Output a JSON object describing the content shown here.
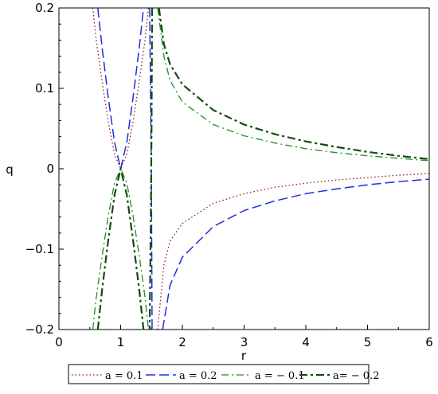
{
  "chart_data": {
    "type": "line",
    "xlabel": "r",
    "ylabel": "q",
    "xlim": [
      0,
      6
    ],
    "ylim": [
      -0.2,
      0.2
    ],
    "x_ticks": [
      "0",
      "1",
      "2",
      "3",
      "4",
      "5",
      "6"
    ],
    "y_ticks": [
      "0.2",
      "0.1",
      "0",
      "−0.1",
      "−0.2"
    ],
    "grid": false,
    "legend_position": "bottom",
    "series": [
      {
        "name": "a = 0.1",
        "color": "#8b1a1a",
        "style": "dotted",
        "segments": [
          [
            [
              0.55,
              0.2
            ],
            [
              0.6,
              0.163
            ],
            [
              0.7,
              0.108
            ],
            [
              0.8,
              0.058
            ],
            [
              0.9,
              0.018
            ],
            [
              1.0,
              0.0
            ],
            [
              1.1,
              0.018
            ],
            [
              1.2,
              0.058
            ],
            [
              1.3,
              0.108
            ],
            [
              1.4,
              0.163
            ],
            [
              1.45,
              0.2
            ]
          ],
          [
            [
              1.6,
              -0.2
            ],
            [
              1.7,
              -0.12
            ],
            [
              1.8,
              -0.09
            ],
            [
              2.0,
              -0.068
            ],
            [
              2.5,
              -0.043
            ],
            [
              3.0,
              -0.031
            ],
            [
              3.5,
              -0.023
            ],
            [
              4.0,
              -0.018
            ],
            [
              4.5,
              -0.014
            ],
            [
              5.0,
              -0.011
            ],
            [
              5.5,
              -0.008
            ],
            [
              6.0,
              -0.006
            ]
          ]
        ]
      },
      {
        "name": "a = 0.2",
        "color": "#1f2fd8",
        "style": "dashed",
        "segments": [
          [
            [
              0.63,
              0.2
            ],
            [
              0.7,
              0.15
            ],
            [
              0.8,
              0.088
            ],
            [
              0.9,
              0.033
            ],
            [
              1.0,
              0.0
            ],
            [
              1.1,
              0.033
            ],
            [
              1.2,
              0.088
            ],
            [
              1.3,
              0.15
            ],
            [
              1.37,
              0.2
            ]
          ],
          [
            [
              1.47,
              0.2
            ],
            [
              1.49,
              0.05
            ],
            [
              1.5,
              -0.05
            ],
            [
              1.51,
              -0.2
            ]
          ],
          [
            [
              1.68,
              -0.2
            ],
            [
              1.8,
              -0.145
            ],
            [
              2.0,
              -0.11
            ],
            [
              2.5,
              -0.072
            ],
            [
              3.0,
              -0.052
            ],
            [
              3.5,
              -0.04
            ],
            [
              4.0,
              -0.031
            ],
            [
              4.5,
              -0.025
            ],
            [
              5.0,
              -0.02
            ],
            [
              5.5,
              -0.016
            ],
            [
              6.0,
              -0.013
            ]
          ]
        ]
      },
      {
        "name": "a = − 0.1",
        "color": "#1e8c1e",
        "style": "dashdot",
        "segments": [
          [
            [
              0.55,
              -0.2
            ],
            [
              0.6,
              -0.163
            ],
            [
              0.7,
              -0.108
            ],
            [
              0.8,
              -0.058
            ],
            [
              0.9,
              -0.018
            ],
            [
              1.0,
              0.0
            ],
            [
              1.1,
              -0.018
            ],
            [
              1.2,
              -0.058
            ],
            [
              1.3,
              -0.108
            ],
            [
              1.4,
              -0.163
            ],
            [
              1.45,
              -0.2
            ]
          ],
          [
            [
              1.6,
              0.2
            ],
            [
              1.7,
              0.14
            ],
            [
              1.8,
              0.11
            ],
            [
              2.0,
              0.083
            ],
            [
              2.5,
              0.055
            ],
            [
              3.0,
              0.041
            ],
            [
              3.5,
              0.032
            ],
            [
              4.0,
              0.025
            ],
            [
              4.5,
              0.02
            ],
            [
              5.0,
              0.016
            ],
            [
              5.5,
              0.013
            ],
            [
              6.0,
              0.01
            ]
          ]
        ]
      },
      {
        "name": "a= − 0.2",
        "color": "#0d4d0d",
        "style": "dashdotbold",
        "segments": [
          [
            [
              0.63,
              -0.2
            ],
            [
              0.7,
              -0.15
            ],
            [
              0.8,
              -0.088
            ],
            [
              0.9,
              -0.033
            ],
            [
              1.0,
              0.0
            ],
            [
              1.1,
              -0.033
            ],
            [
              1.2,
              -0.088
            ],
            [
              1.3,
              -0.15
            ],
            [
              1.37,
              -0.2
            ]
          ],
          [
            [
              1.51,
              0.2
            ],
            [
              1.5,
              0.05
            ],
            [
              1.49,
              -0.05
            ],
            [
              1.47,
              -0.2
            ]
          ],
          [
            [
              1.62,
              0.2
            ],
            [
              1.7,
              0.155
            ],
            [
              1.8,
              0.13
            ],
            [
              2.0,
              0.105
            ],
            [
              2.5,
              0.073
            ],
            [
              3.0,
              0.055
            ],
            [
              3.5,
              0.043
            ],
            [
              4.0,
              0.034
            ],
            [
              4.5,
              0.027
            ],
            [
              5.0,
              0.021
            ],
            [
              5.5,
              0.016
            ],
            [
              6.0,
              0.012
            ]
          ]
        ]
      }
    ]
  }
}
